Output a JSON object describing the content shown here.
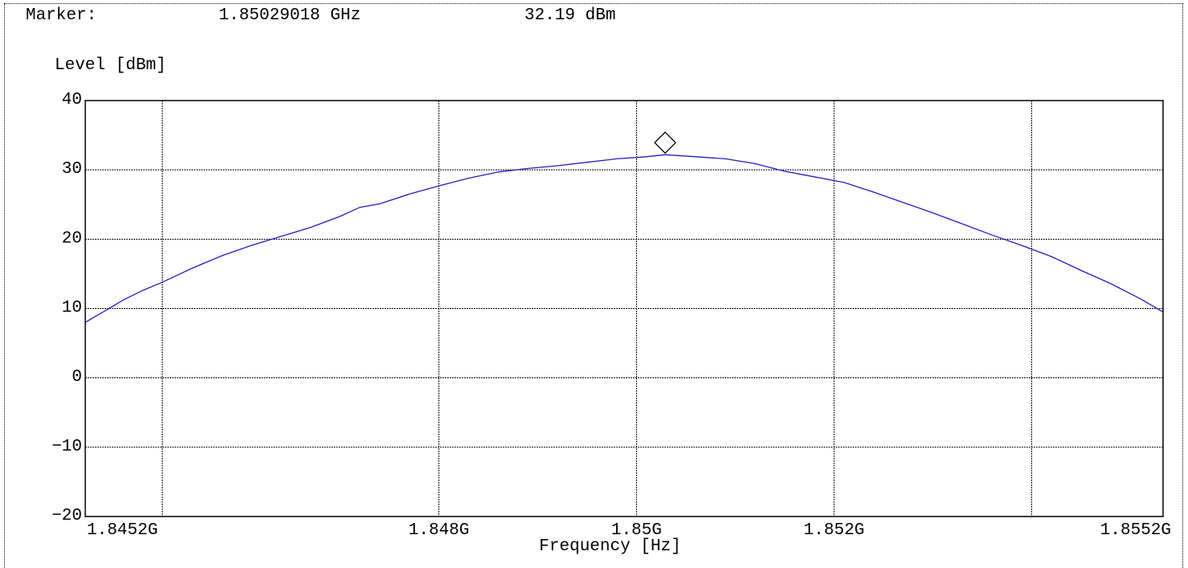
{
  "header": {
    "marker_label": "Marker:",
    "marker_freq": "1.85029018 GHz",
    "marker_level": "32.19 dBm"
  },
  "chart_data": {
    "type": "line",
    "title": "",
    "xlabel": "Frequency [Hz]",
    "ylabel": "Level [dBm]",
    "xlim": [
      1.84442,
      1.85533
    ],
    "ylim": [
      -20,
      40
    ],
    "y_ticks": [
      40,
      30,
      20,
      10,
      0,
      -10,
      -20
    ],
    "y_tick_labels": [
      "40",
      "30",
      "20",
      "10",
      "0",
      "−10",
      "−20"
    ],
    "x_ticks": [
      1.8452,
      1.848,
      1.85,
      1.852,
      1.8552
    ],
    "x_tick_labels": [
      "1.8452G",
      "1.848G",
      "1.85G",
      "1.852G",
      "1.8552G"
    ],
    "x_grid": [
      1.8452,
      1.848,
      1.85,
      1.852,
      1.854
    ],
    "grid": true,
    "series": [
      {
        "color": "#1f1fbf",
        "x": [
          1.84442,
          1.8446,
          1.8448,
          1.845,
          1.8452,
          1.8455,
          1.8458,
          1.8461,
          1.8464,
          1.8467,
          1.847,
          1.8472,
          1.8474,
          1.8477,
          1.848,
          1.8483,
          1.8486,
          1.8489,
          1.8492,
          1.8495,
          1.8498,
          1.8501,
          1.85029,
          1.8506,
          1.8509,
          1.8512,
          1.8515,
          1.8518,
          1.8521,
          1.8524,
          1.8527,
          1.853,
          1.8533,
          1.8536,
          1.8539,
          1.8542,
          1.8545,
          1.8548,
          1.8551,
          1.85533
        ],
        "y": [
          8.0,
          9.5,
          11.2,
          12.6,
          13.8,
          15.8,
          17.6,
          19.1,
          20.4,
          21.7,
          23.3,
          24.6,
          25.1,
          26.5,
          27.7,
          28.8,
          29.7,
          30.2,
          30.6,
          31.1,
          31.6,
          31.9,
          32.19,
          31.9,
          31.6,
          30.9,
          29.8,
          29.0,
          28.2,
          26.8,
          25.3,
          23.8,
          22.2,
          20.6,
          19.1,
          17.5,
          15.5,
          13.6,
          11.4,
          9.5
        ]
      }
    ],
    "marker": {
      "x": 1.85029,
      "y": 32.19
    }
  }
}
